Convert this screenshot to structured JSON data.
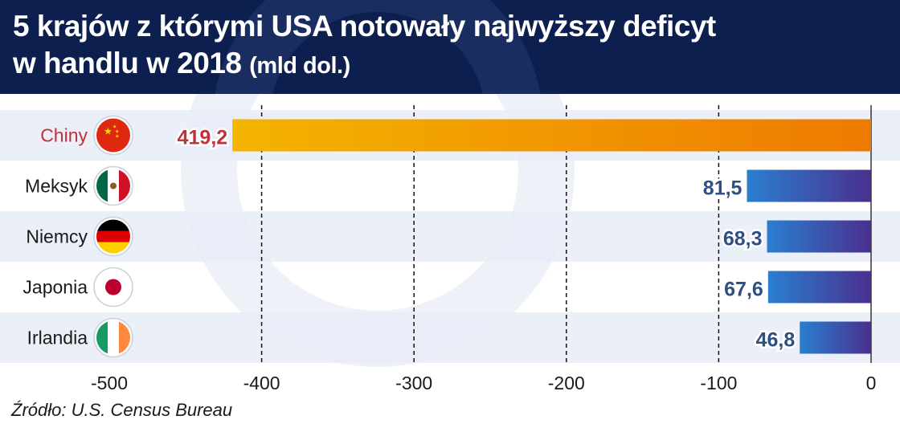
{
  "header": {
    "title_line1": "5 krajów z którymi USA notowały najwyższy deficyt",
    "title_line2": "w handlu w 2018",
    "title_unit": "(mld dol.)"
  },
  "source": "Źródło: U.S. Census Bureau",
  "colors": {
    "header_bg": "#0d1f4f",
    "highlight_label": "#c0323a",
    "china_bar_start": "#f4b400",
    "china_bar_end": "#ee7a00",
    "blue_bar_start": "#2a7fd0",
    "blue_bar_end": "#4a2f8e",
    "row_band": "#e6ecf7"
  },
  "chart_data": {
    "type": "bar",
    "orientation": "horizontal",
    "categories": [
      "Chiny",
      "Meksyk",
      "Niemcy",
      "Japonia",
      "Irlandia"
    ],
    "values": [
      -419.2,
      -81.5,
      -68.3,
      -67.6,
      -46.8
    ],
    "value_labels": [
      "419,2",
      "81,5",
      "68,3",
      "67,6",
      "46,8"
    ],
    "flags": [
      "china-flag-icon",
      "mexico-flag-icon",
      "germany-flag-icon",
      "japan-flag-icon",
      "ireland-flag-icon"
    ],
    "highlight": "Chiny",
    "xlim": [
      -500,
      0
    ],
    "xticks": [
      -500,
      -400,
      -300,
      -200,
      -100,
      0
    ],
    "xtick_labels": [
      "-500",
      "-400",
      "-300",
      "-200",
      "-100",
      "0"
    ],
    "grid": "vertical dashed"
  }
}
